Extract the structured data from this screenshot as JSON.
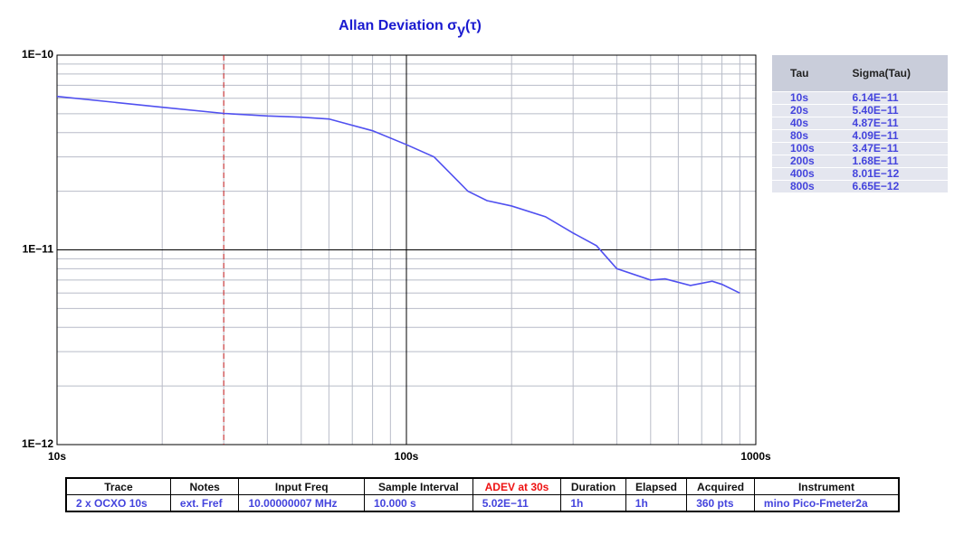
{
  "chart_data": {
    "type": "line",
    "title": "Allan Deviation σ",
    "title_subscript": "y",
    "title_suffix": "(τ)",
    "log_x": true,
    "log_y": true,
    "grid": true,
    "xlim": [
      10,
      1000
    ],
    "xticks": [
      {
        "value": 10,
        "label": "10s"
      },
      {
        "value": 100,
        "label": "100s"
      },
      {
        "value": 1000,
        "label": "1000s"
      }
    ],
    "xminor": [
      20,
      30,
      40,
      50,
      60,
      70,
      80,
      90,
      200,
      300,
      400,
      500,
      600,
      700,
      800,
      900
    ],
    "ylim": [
      1e-12,
      1e-10
    ],
    "yticks": [
      {
        "value": 1e-12,
        "label": "1E−12"
      },
      {
        "value": 1e-11,
        "label": "1E−11"
      },
      {
        "value": 1e-10,
        "label": "1E−10"
      }
    ],
    "yminor": [
      2e-12,
      3e-12,
      4e-12,
      5e-12,
      6e-12,
      7e-12,
      8e-12,
      9e-12,
      2e-11,
      3e-11,
      4e-11,
      5e-11,
      6e-11,
      7e-11,
      8e-11,
      9e-11
    ],
    "marker_tau": 30,
    "marker_color": "#cc2020",
    "series": [
      {
        "color": "#5050f0",
        "x": [
          10,
          20,
          30,
          40,
          50,
          60,
          80,
          100,
          120,
          150,
          170,
          200,
          250,
          300,
          350,
          400,
          500,
          550,
          650,
          750,
          800,
          900
        ],
        "values": [
          6.14e-11,
          5.4e-11,
          5.02e-11,
          4.87e-11,
          4.8e-11,
          4.7e-11,
          4.09e-11,
          3.47e-11,
          3e-11,
          2e-11,
          1.79e-11,
          1.68e-11,
          1.48e-11,
          1.22e-11,
          1.05e-11,
          8.01e-12,
          7e-12,
          7.1e-12,
          6.56e-12,
          6.9e-12,
          6.65e-12,
          6e-12
        ]
      }
    ]
  },
  "side_table": {
    "headers": [
      "Tau",
      "Sigma(Tau)"
    ],
    "rows": [
      [
        "10s",
        "6.14E−11"
      ],
      [
        "20s",
        "5.40E−11"
      ],
      [
        "40s",
        "4.87E−11"
      ],
      [
        "80s",
        "4.09E−11"
      ],
      [
        "100s",
        "3.47E−11"
      ],
      [
        "200s",
        "1.68E−11"
      ],
      [
        "400s",
        "8.01E−12"
      ],
      [
        "800s",
        "6.65E−12"
      ]
    ]
  },
  "info_table": {
    "headers": [
      "Trace",
      "Notes",
      "Input Freq",
      "Sample Interval",
      "ADEV at 30s",
      "Duration",
      "Elapsed",
      "Acquired",
      "Instrument"
    ],
    "row": [
      "2 x OCXO 10s",
      "ext. Fref",
      "10.00000007 MHz",
      "10.000 s",
      "5.02E−11",
      "1h",
      "1h",
      "360 pts",
      "mino Pico-Fmeter2a"
    ],
    "highlight_header": 4,
    "highlight_color": "#ee1111"
  }
}
